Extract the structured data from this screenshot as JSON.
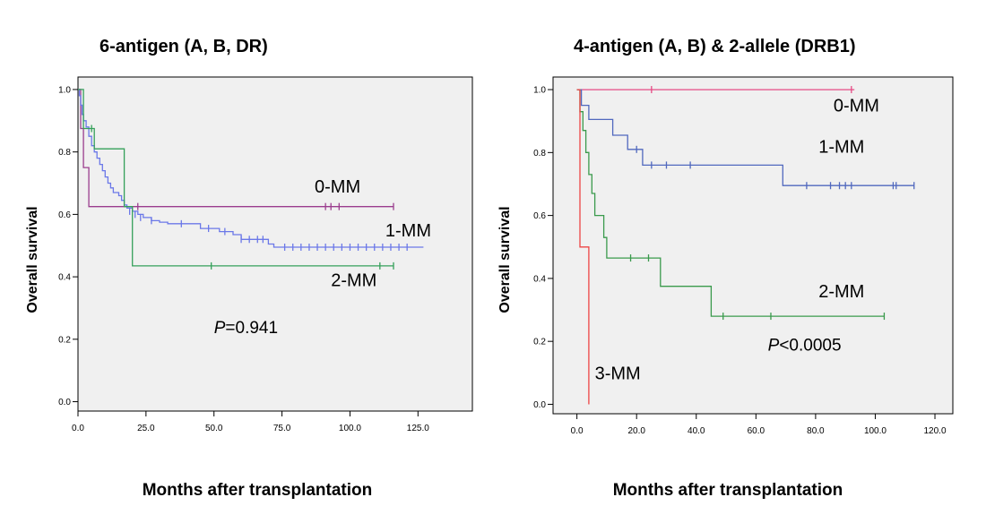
{
  "chart_data": [
    {
      "type": "line",
      "title": "6-antigen (A, B, DR)",
      "xlabel": "Months after transplantation",
      "ylabel": "Overall survival",
      "xlim": [
        0,
        145
      ],
      "ylim": [
        -0.03,
        1.04
      ],
      "xticks": [
        0,
        25,
        50,
        75,
        100,
        125
      ],
      "xtick_labels": [
        "0.0",
        "25.0",
        "50.0",
        "75.0",
        "100.0",
        "125.0"
      ],
      "yticks": [
        0,
        0.2,
        0.4,
        0.6,
        0.8,
        1.0
      ],
      "ytick_labels": [
        "0.0",
        "0.2",
        "0.4",
        "0.6",
        "0.8",
        "1.0"
      ],
      "pvalue": {
        "italic": "P",
        "rest": "=0.941",
        "x": 50,
        "y": 0.22
      },
      "series": [
        {
          "name": "0-MM",
          "color": "#9b3d8e",
          "steps": [
            [
              0,
              1.0
            ],
            [
              1,
              0.875
            ],
            [
              2,
              0.75
            ],
            [
              4,
              0.625
            ],
            [
              116,
              0.625
            ]
          ],
          "censored": [
            [
              22,
              0.625
            ],
            [
              91,
              0.625
            ],
            [
              93,
              0.625
            ],
            [
              96,
              0.625
            ],
            [
              116,
              0.625
            ]
          ],
          "label": "0-MM",
          "label_pos": [
            87,
            0.67
          ]
        },
        {
          "name": "1-MM",
          "color": "#6b78e8",
          "steps": [
            [
              0,
              1.0
            ],
            [
              0.5,
              0.98
            ],
            [
              1,
              0.95
            ],
            [
              1.5,
              0.92
            ],
            [
              2,
              0.9
            ],
            [
              3,
              0.88
            ],
            [
              4,
              0.85
            ],
            [
              5,
              0.82
            ],
            [
              6,
              0.8
            ],
            [
              7,
              0.78
            ],
            [
              8,
              0.76
            ],
            [
              9,
              0.74
            ],
            [
              10,
              0.72
            ],
            [
              11,
              0.7
            ],
            [
              12,
              0.685
            ],
            [
              13,
              0.67
            ],
            [
              15,
              0.66
            ],
            [
              16,
              0.645
            ],
            [
              17,
              0.63
            ],
            [
              18,
              0.62
            ],
            [
              20,
              0.61
            ],
            [
              22,
              0.6
            ],
            [
              24,
              0.59
            ],
            [
              27,
              0.58
            ],
            [
              30,
              0.575
            ],
            [
              33,
              0.57
            ],
            [
              45,
              0.555
            ],
            [
              52,
              0.545
            ],
            [
              57,
              0.535
            ],
            [
              60,
              0.52
            ],
            [
              70,
              0.505
            ],
            [
              72,
              0.495
            ],
            [
              127,
              0.495
            ]
          ],
          "censored": [
            [
              19,
              0.61
            ],
            [
              21,
              0.6
            ],
            [
              23,
              0.59
            ],
            [
              27,
              0.58
            ],
            [
              38,
              0.57
            ],
            [
              48,
              0.555
            ],
            [
              54,
              0.545
            ],
            [
              60,
              0.52
            ],
            [
              63,
              0.52
            ],
            [
              66,
              0.52
            ],
            [
              68,
              0.52
            ],
            [
              76,
              0.495
            ],
            [
              79,
              0.495
            ],
            [
              82,
              0.495
            ],
            [
              85,
              0.495
            ],
            [
              88,
              0.495
            ],
            [
              91,
              0.495
            ],
            [
              94,
              0.495
            ],
            [
              97,
              0.495
            ],
            [
              100,
              0.495
            ],
            [
              103,
              0.495
            ],
            [
              106,
              0.495
            ],
            [
              109,
              0.495
            ],
            [
              112,
              0.495
            ],
            [
              115,
              0.495
            ],
            [
              118,
              0.495
            ],
            [
              121,
              0.495
            ]
          ],
          "label": "1-MM",
          "label_pos": [
            113,
            0.53
          ]
        },
        {
          "name": "2-MM",
          "color": "#35a05a",
          "steps": [
            [
              0,
              1.0
            ],
            [
              2,
              1.0
            ],
            [
              2,
              0.875
            ],
            [
              6,
              0.875
            ],
            [
              6,
              0.81
            ],
            [
              10,
              0.81
            ],
            [
              10,
              0.81
            ],
            [
              17,
              0.81
            ],
            [
              17,
              0.625
            ],
            [
              20,
              0.625
            ],
            [
              20,
              0.435
            ],
            [
              116,
              0.435
            ]
          ],
          "censored": [
            [
              5,
              0.875
            ],
            [
              49,
              0.435
            ],
            [
              111,
              0.435
            ],
            [
              116,
              0.435
            ]
          ],
          "label": "2-MM",
          "label_pos": [
            93,
            0.37
          ]
        }
      ]
    },
    {
      "type": "line",
      "title": "4-antigen (A, B) & 2-allele (DRB1)",
      "xlabel": "Months after transplantation",
      "ylabel": "Overall survival",
      "xlim": [
        -8,
        126
      ],
      "ylim": [
        -0.03,
        1.04
      ],
      "xticks": [
        0,
        20,
        40,
        60,
        80,
        100,
        120
      ],
      "xtick_labels": [
        "0.0",
        "20.0",
        "40.0",
        "60.0",
        "80.0",
        "100.0",
        "120.0"
      ],
      "yticks": [
        0,
        0.2,
        0.4,
        0.6,
        0.8,
        1.0
      ],
      "ytick_labels": [
        "0.0",
        "0.2",
        "0.4",
        "0.6",
        "0.8",
        "1.0"
      ],
      "pvalue": {
        "italic": "P",
        "rest": "<0.0005",
        "x": 64,
        "y": 0.17
      },
      "series": [
        {
          "name": "0-MM",
          "color": "#e64a84",
          "steps": [
            [
              0,
              1.0
            ],
            [
              93,
              1.0
            ]
          ],
          "censored": [
            [
              25,
              1.0
            ],
            [
              92,
              1.0
            ]
          ],
          "label": "0-MM",
          "label_pos": [
            86,
            0.93
          ]
        },
        {
          "name": "1-MM",
          "color": "#5068be",
          "steps": [
            [
              0,
              1.0
            ],
            [
              1.5,
              1.0
            ],
            [
              1.5,
              0.95
            ],
            [
              4,
              0.95
            ],
            [
              4,
              0.905
            ],
            [
              12,
              0.905
            ],
            [
              12,
              0.855
            ],
            [
              17,
              0.855
            ],
            [
              17,
              0.81
            ],
            [
              22,
              0.81
            ],
            [
              22,
              0.76
            ],
            [
              69,
              0.76
            ],
            [
              69,
              0.695
            ],
            [
              113,
              0.695
            ]
          ],
          "censored": [
            [
              20,
              0.81
            ],
            [
              25,
              0.76
            ],
            [
              30,
              0.76
            ],
            [
              38,
              0.76
            ],
            [
              77,
              0.695
            ],
            [
              85,
              0.695
            ],
            [
              88,
              0.695
            ],
            [
              90,
              0.695
            ],
            [
              92,
              0.695
            ],
            [
              106,
              0.695
            ],
            [
              107,
              0.695
            ],
            [
              113,
              0.695
            ]
          ],
          "label": "1-MM",
          "label_pos": [
            81,
            0.8
          ]
        },
        {
          "name": "2-MM",
          "color": "#3a9a4c",
          "steps": [
            [
              0,
              1.0
            ],
            [
              1,
              1.0
            ],
            [
              1,
              0.93
            ],
            [
              2,
              0.93
            ],
            [
              2,
              0.87
            ],
            [
              3,
              0.87
            ],
            [
              3,
              0.8
            ],
            [
              4,
              0.8
            ],
            [
              4,
              0.73
            ],
            [
              5,
              0.73
            ],
            [
              5,
              0.67
            ],
            [
              6,
              0.67
            ],
            [
              6,
              0.6
            ],
            [
              9,
              0.6
            ],
            [
              9,
              0.53
            ],
            [
              10,
              0.53
            ],
            [
              10,
              0.465
            ],
            [
              28,
              0.465
            ],
            [
              28,
              0.375
            ],
            [
              45,
              0.375
            ],
            [
              45,
              0.28
            ],
            [
              103,
              0.28
            ]
          ],
          "censored": [
            [
              18,
              0.465
            ],
            [
              24,
              0.465
            ],
            [
              49,
              0.28
            ],
            [
              65,
              0.28
            ],
            [
              103,
              0.28
            ]
          ],
          "label": "2-MM",
          "label_pos": [
            81,
            0.34
          ]
        },
        {
          "name": "3-MM",
          "color": "#ee4444",
          "steps": [
            [
              0,
              1.0
            ],
            [
              1,
              1.0
            ],
            [
              1,
              0.5
            ],
            [
              4,
              0.5
            ],
            [
              4,
              0.0
            ]
          ],
          "censored": [],
          "label": "3-MM",
          "label_pos": [
            6,
            0.08
          ]
        }
      ]
    }
  ]
}
